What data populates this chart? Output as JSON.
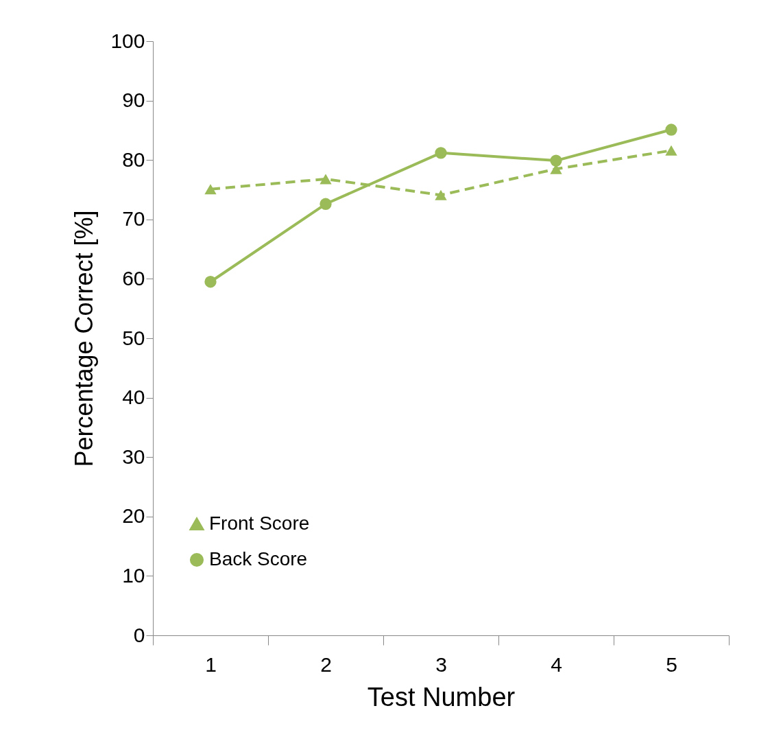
{
  "chart_data": {
    "type": "line",
    "xlabel": "Test Number",
    "ylabel": "Percentage Correct [%]",
    "categories": [
      "1",
      "2",
      "3",
      "4",
      "5"
    ],
    "series": [
      {
        "name": "Front Score",
        "color": "#9bbb59",
        "marker": "triangle",
        "line_style": "dashed",
        "values": [
          75.1,
          76.8,
          74.1,
          78.5,
          81.6
        ]
      },
      {
        "name": "Back Score",
        "color": "#9bbb59",
        "marker": "circle",
        "line_style": "solid",
        "values": [
          59.5,
          72.6,
          81.2,
          79.9,
          85.1
        ]
      }
    ],
    "ylim": [
      0,
      100
    ],
    "yticks": [
      0,
      10,
      20,
      30,
      40,
      50,
      60,
      70,
      80,
      90,
      100
    ],
    "grid": false,
    "legend": "bottom left"
  }
}
